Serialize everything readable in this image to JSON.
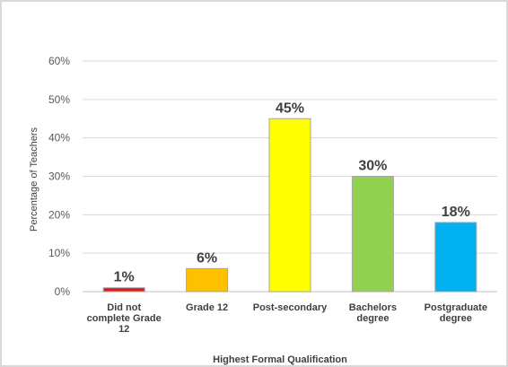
{
  "chart_data": {
    "type": "bar",
    "title": "",
    "xlabel": "Highest Formal Qualification",
    "ylabel": "Percentage of Teachers",
    "ylim": [
      0,
      60
    ],
    "yticks": [
      0,
      10,
      20,
      30,
      40,
      50,
      60
    ],
    "ytick_labels": [
      "0%",
      "10%",
      "20%",
      "30%",
      "40%",
      "50%",
      "60%"
    ],
    "grid": true,
    "legend": "none",
    "categories": [
      [
        "Did not",
        "complete Grade",
        "12"
      ],
      [
        "Grade 12"
      ],
      [
        "Post-secondary"
      ],
      [
        "Bachelors",
        "degree"
      ],
      [
        "Postgraduate",
        "degree"
      ]
    ],
    "values": [
      1,
      6,
      45,
      30,
      18
    ],
    "value_labels": [
      "1%",
      "6%",
      "45%",
      "30%",
      "18%"
    ],
    "colors": [
      "#e31a1c",
      "#ffc000",
      "#ffff00",
      "#92d050",
      "#00b0f0"
    ]
  }
}
